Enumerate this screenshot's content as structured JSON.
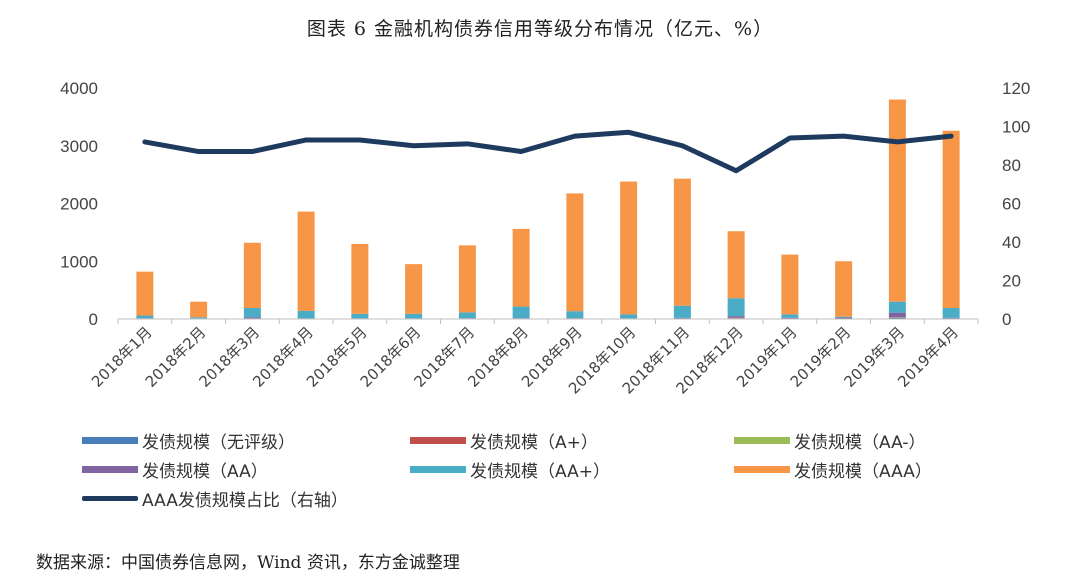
{
  "title": "图表 6   金融机构债券信用等级分布情况（亿元、%）",
  "source": "数据来源：中国债券信息网，Wind 资讯，东方金诚整理",
  "chart_data": {
    "type": "bar",
    "stacked": true,
    "categories": [
      "2018年1月",
      "2018年2月",
      "2018年3月",
      "2018年4月",
      "2018年5月",
      "2018年6月",
      "2018年7月",
      "2018年8月",
      "2018年9月",
      "2018年10月",
      "2018年11月",
      "2018年12月",
      "2019年1月",
      "2019年2月",
      "2019年3月",
      "2019年4月"
    ],
    "y_left": {
      "ylim": [
        0,
        4000
      ],
      "ticks": [
        0,
        1000,
        2000,
        3000,
        4000
      ]
    },
    "y_right": {
      "ylim": [
        0,
        120
      ],
      "ticks": [
        0,
        20,
        40,
        60,
        80,
        100,
        120
      ]
    },
    "grid": false,
    "legend_position": "bottom",
    "series": [
      {
        "name": "发债规模（无评级）",
        "color": "#4a7ebb",
        "type": "bar",
        "axis": "left",
        "values": [
          10,
          5,
          10,
          5,
          5,
          5,
          10,
          10,
          10,
          5,
          10,
          10,
          10,
          5,
          20,
          10
        ]
      },
      {
        "name": "发债规模（A+）",
        "color": "#c0504d",
        "type": "bar",
        "axis": "left",
        "values": [
          0,
          0,
          0,
          0,
          0,
          0,
          0,
          0,
          0,
          0,
          0,
          5,
          0,
          0,
          5,
          0
        ]
      },
      {
        "name": "发债规模（AA-）",
        "color": "#9bbb59",
        "type": "bar",
        "axis": "left",
        "values": [
          0,
          0,
          0,
          0,
          0,
          0,
          0,
          0,
          0,
          0,
          0,
          5,
          0,
          0,
          5,
          0
        ]
      },
      {
        "name": "发债规模（AA）",
        "color": "#8064a2",
        "type": "bar",
        "axis": "left",
        "values": [
          5,
          5,
          20,
          5,
          5,
          5,
          5,
          5,
          5,
          5,
          10,
          30,
          10,
          20,
          80,
          10
        ]
      },
      {
        "name": "发债规模（AA+）",
        "color": "#4bacc6",
        "type": "bar",
        "axis": "left",
        "values": [
          45,
          20,
          160,
          130,
          80,
          80,
          100,
          200,
          120,
          70,
          210,
          310,
          60,
          15,
          190,
          170
        ]
      },
      {
        "name": "发债规模（AAA）",
        "color": "#f79646",
        "type": "bar",
        "axis": "left",
        "values": [
          760,
          270,
          1130,
          1720,
          1210,
          860,
          1160,
          1345,
          2040,
          2300,
          2200,
          1160,
          1035,
          960,
          3500,
          3070
        ]
      },
      {
        "name": "AAA发债规模占比（右轴）",
        "color": "#1f3a5f",
        "type": "line",
        "axis": "right",
        "values": [
          92,
          87,
          87,
          93,
          93,
          90,
          91,
          87,
          95,
          97,
          90,
          77,
          94,
          95,
          92,
          95
        ]
      }
    ]
  }
}
